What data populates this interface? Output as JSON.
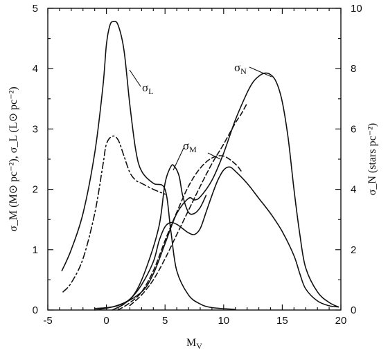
{
  "chart_data": {
    "type": "line",
    "xlabel": "M",
    "xlabel_sub": "V",
    "ylabel_left": "σ_M (M⊙ pc⁻²), σ_L (L⊙ pc⁻²)",
    "ylabel_right": "σ_N (stars pc⁻²)",
    "xlim": [
      -5,
      20
    ],
    "ylim_left": [
      0,
      5
    ],
    "ylim_right": [
      0,
      10
    ],
    "x_ticks": [
      "-5",
      "0",
      "5",
      "10",
      "15",
      "20"
    ],
    "y_left_ticks": [
      "0",
      "1",
      "2",
      "3",
      "4",
      "5"
    ],
    "y_right_ticks": [
      "0",
      "2",
      "4",
      "6",
      "8",
      "10"
    ],
    "annotations": [
      {
        "id": "sigma-L",
        "symbol": "σ",
        "sub": "L"
      },
      {
        "id": "sigma-M",
        "symbol": "σ",
        "sub": "M"
      },
      {
        "id": "sigma-N",
        "symbol": "σ",
        "sub": "N"
      }
    ],
    "series": [
      {
        "id": "sigma-L-solid",
        "style": "solid",
        "axis": "left",
        "points": [
          [
            -3.8,
            0.65
          ],
          [
            -3,
            1.0
          ],
          [
            -2,
            1.6
          ],
          [
            -1,
            2.6
          ],
          [
            -0.3,
            3.7
          ],
          [
            0,
            4.4
          ],
          [
            0.3,
            4.72
          ],
          [
            0.6,
            4.78
          ],
          [
            1,
            4.72
          ],
          [
            1.5,
            4.3
          ],
          [
            2,
            3.4
          ],
          [
            2.5,
            2.65
          ],
          [
            3,
            2.3
          ],
          [
            4,
            2.1
          ],
          [
            5,
            2.0
          ],
          [
            5.5,
            1.3
          ],
          [
            6,
            0.65
          ],
          [
            7,
            0.25
          ],
          [
            8,
            0.1
          ],
          [
            9,
            0.04
          ],
          [
            11,
            0.01
          ]
        ]
      },
      {
        "id": "sigma-M-dashdot",
        "style": "dashdot",
        "axis": "left",
        "points": [
          [
            -3.7,
            0.3
          ],
          [
            -3,
            0.45
          ],
          [
            -2,
            0.85
          ],
          [
            -1,
            1.6
          ],
          [
            -0.3,
            2.4
          ],
          [
            0,
            2.75
          ],
          [
            0.5,
            2.88
          ],
          [
            1,
            2.82
          ],
          [
            1.5,
            2.55
          ],
          [
            2,
            2.28
          ],
          [
            2.5,
            2.15
          ],
          [
            3,
            2.1
          ],
          [
            4,
            2.0
          ],
          [
            5,
            1.92
          ]
        ]
      },
      {
        "id": "sigma-M-solid",
        "style": "solid",
        "axis": "left",
        "points": [
          [
            -1,
            0.0
          ],
          [
            0,
            0.03
          ],
          [
            1,
            0.08
          ],
          [
            2,
            0.18
          ],
          [
            3,
            0.42
          ],
          [
            4,
            0.8
          ],
          [
            4.5,
            1.15
          ],
          [
            5,
            1.38
          ],
          [
            5.5,
            1.45
          ],
          [
            6,
            1.42
          ],
          [
            6.5,
            1.35
          ],
          [
            7,
            1.28
          ],
          [
            7.5,
            1.25
          ],
          [
            8,
            1.35
          ],
          [
            8.5,
            1.62
          ],
          [
            9,
            1.9
          ],
          [
            9.5,
            2.15
          ],
          [
            10,
            2.32
          ],
          [
            10.5,
            2.37
          ],
          [
            11,
            2.3
          ],
          [
            12,
            2.1
          ],
          [
            13,
            1.85
          ],
          [
            14,
            1.6
          ],
          [
            15,
            1.3
          ],
          [
            16,
            0.9
          ],
          [
            16.5,
            0.6
          ],
          [
            17,
            0.35
          ],
          [
            18,
            0.15
          ],
          [
            19,
            0.07
          ],
          [
            19.8,
            0.05
          ]
        ]
      },
      {
        "id": "sigma-M-upper-solid",
        "style": "solid",
        "axis": "left",
        "points": [
          [
            0.5,
            0.0
          ],
          [
            1.5,
            0.1
          ],
          [
            2.5,
            0.3
          ],
          [
            3.5,
            0.75
          ],
          [
            4.5,
            1.4
          ],
          [
            5,
            2.1
          ],
          [
            5.5,
            2.38
          ],
          [
            5.8,
            2.38
          ],
          [
            6.2,
            2.22
          ],
          [
            6.5,
            1.9
          ],
          [
            7,
            1.62
          ],
          [
            7.5,
            1.6
          ],
          [
            8,
            1.7
          ],
          [
            8.5,
            1.9
          ]
        ]
      },
      {
        "id": "sigma-M-dashed",
        "style": "dashed",
        "axis": "left",
        "points": [
          [
            1,
            0.0
          ],
          [
            2,
            0.12
          ],
          [
            3,
            0.3
          ],
          [
            4,
            0.65
          ],
          [
            5,
            1.15
          ],
          [
            6,
            1.62
          ],
          [
            7,
            2.05
          ],
          [
            8,
            2.35
          ],
          [
            9,
            2.52
          ],
          [
            10,
            2.55
          ],
          [
            11,
            2.42
          ],
          [
            11.5,
            2.3
          ]
        ]
      },
      {
        "id": "sigma-N-solid",
        "style": "solid",
        "axis": "right",
        "points": [
          [
            -1,
            0.05
          ],
          [
            1,
            0.15
          ],
          [
            3,
            0.6
          ],
          [
            4,
            1.2
          ],
          [
            5,
            2.2
          ],
          [
            6,
            3.2
          ],
          [
            7,
            3.7
          ],
          [
            7.5,
            3.65
          ],
          [
            8,
            3.75
          ],
          [
            9,
            4.3
          ],
          [
            10,
            5.2
          ],
          [
            11,
            6.3
          ],
          [
            12,
            7.2
          ],
          [
            12.5,
            7.55
          ],
          [
            13,
            7.75
          ],
          [
            13.5,
            7.85
          ],
          [
            14,
            7.8
          ],
          [
            14.5,
            7.55
          ],
          [
            15,
            6.9
          ],
          [
            15.5,
            5.7
          ],
          [
            16,
            4.0
          ],
          [
            16.5,
            2.5
          ],
          [
            17,
            1.4
          ],
          [
            18,
            0.6
          ],
          [
            19,
            0.25
          ],
          [
            19.8,
            0.1
          ]
        ]
      },
      {
        "id": "sigma-N-dashed",
        "style": "dashed",
        "axis": "right",
        "points": [
          [
            2,
            0.15
          ],
          [
            3,
            0.5
          ],
          [
            4,
            1.0
          ],
          [
            5,
            1.7
          ],
          [
            6,
            2.5
          ],
          [
            7,
            3.3
          ],
          [
            8,
            4.1
          ],
          [
            9,
            4.85
          ],
          [
            10,
            5.5
          ],
          [
            11,
            6.2
          ],
          [
            11.5,
            6.5
          ],
          [
            12,
            6.85
          ]
        ]
      }
    ]
  }
}
